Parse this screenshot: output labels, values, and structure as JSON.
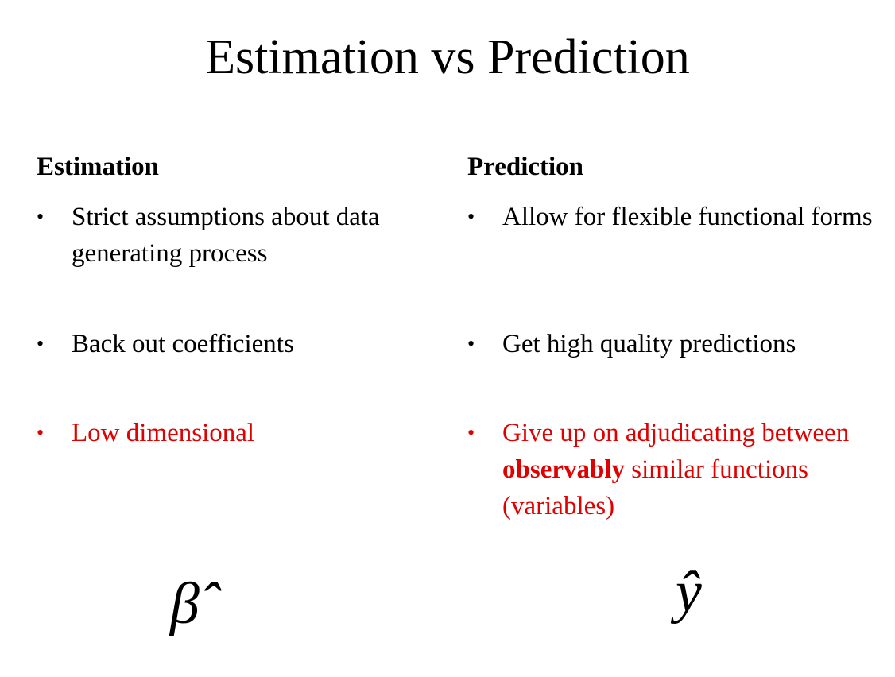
{
  "title": "Estimation vs Prediction",
  "left": {
    "heading": "Estimation",
    "bullets": [
      {
        "text": "Strict assumptions about data generating process"
      },
      {
        "text": "Back out coefficients"
      },
      {
        "text": "Low dimensional",
        "color": "#e00000"
      }
    ],
    "symbol": "β̂"
  },
  "right": {
    "heading": "Prediction",
    "bullets": [
      {
        "text": "Allow for flexible functional forms"
      },
      {
        "text": "Get high quality predictions"
      },
      {
        "text_before": "Give up on adjudicating between ",
        "text_bold": "observably",
        "text_after": " similar functions (variables)",
        "color": "#e00000"
      }
    ],
    "symbol": "ŷ"
  },
  "bullet_glyph": "•"
}
